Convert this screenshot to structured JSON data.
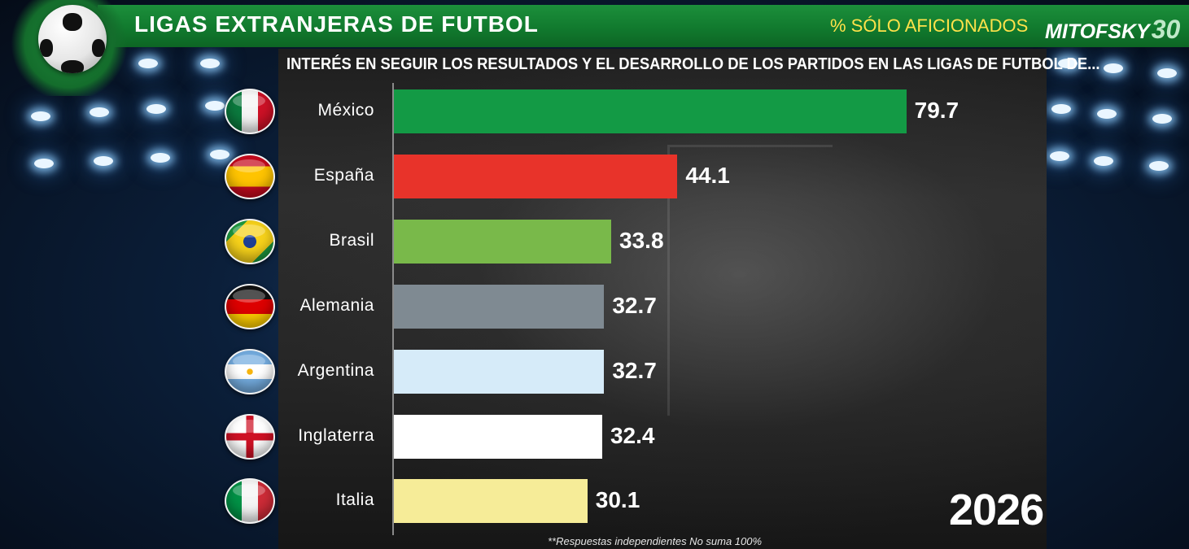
{
  "header": {
    "title": "LIGAS EXTRANJERAS  DE FUTBOL",
    "subtitle": "% SÓLO AFICIONADOS",
    "logo_text": "MITOFSKY",
    "logo_number": "30"
  },
  "chart_data": {
    "type": "bar",
    "orientation": "horizontal",
    "title": "INTERÉS EN SEGUIR LOS RESULTADOS Y EL DESARROLLO DE LOS PARTIDOS EN LAS LIGAS DE FUTBOL DE...",
    "categories": [
      "México",
      "España",
      "Brasil",
      "Alemania",
      "Argentina",
      "Inglaterra",
      "Italia"
    ],
    "values": [
      79.7,
      44.1,
      33.8,
      32.7,
      32.7,
      32.4,
      30.1
    ],
    "value_labels": [
      "79.7",
      "44.1",
      "33.8",
      "32.7",
      "32.7",
      "32.4",
      "30.1"
    ],
    "bar_colors": [
      "#139a45",
      "#e8332a",
      "#79b94a",
      "#7f8a92",
      "#d6ebf9",
      "#ffffff",
      "#f6ec98"
    ],
    "xlim": [
      0,
      100
    ],
    "grid": false,
    "legend": "none"
  },
  "year": "2026",
  "footnote": "**Respuestas independientes No suma 100%",
  "flags": [
    "mexico-flag-icon",
    "spain-flag-icon",
    "brazil-flag-icon",
    "germany-flag-icon",
    "argentina-flag-icon",
    "england-flag-icon",
    "italy-flag-icon"
  ],
  "colors": {
    "header_green": "#117a2e",
    "subtitle_yellow": "#ffe24a",
    "background": "#0b1f3a"
  }
}
